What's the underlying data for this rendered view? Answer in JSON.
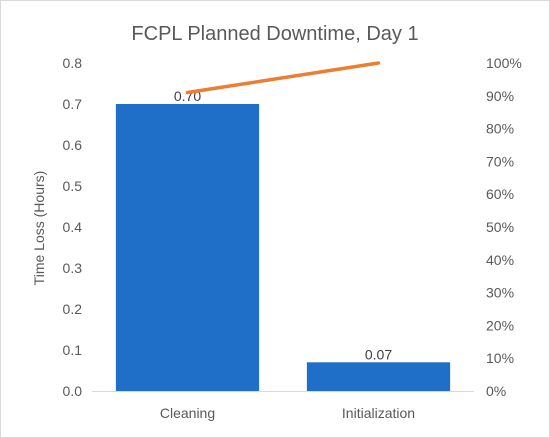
{
  "chart_data": {
    "type": "bar",
    "title": "FCPL Planned Downtime, Day 1",
    "ylabel": "Time Loss (Hours)",
    "categories": [
      "Cleaning",
      "Initialization"
    ],
    "series": [
      {
        "type": "bar",
        "values": [
          0.7,
          0.07
        ],
        "data_labels": [
          "0.70",
          "0.07"
        ],
        "color": "#1f6fc9"
      },
      {
        "type": "line",
        "axis": "secondary",
        "values": [
          0.91,
          1.0
        ],
        "color": "#ed7d31"
      }
    ],
    "ylim": [
      0,
      0.8
    ],
    "y_ticks": [
      "0.0",
      "0.1",
      "0.2",
      "0.3",
      "0.4",
      "0.5",
      "0.6",
      "0.7",
      "0.8"
    ],
    "y2lim": [
      0,
      1
    ],
    "y2_ticks": [
      "0%",
      "10%",
      "20%",
      "30%",
      "40%",
      "50%",
      "60%",
      "70%",
      "80%",
      "90%",
      "100%"
    ],
    "grid": false,
    "legend": "none"
  }
}
